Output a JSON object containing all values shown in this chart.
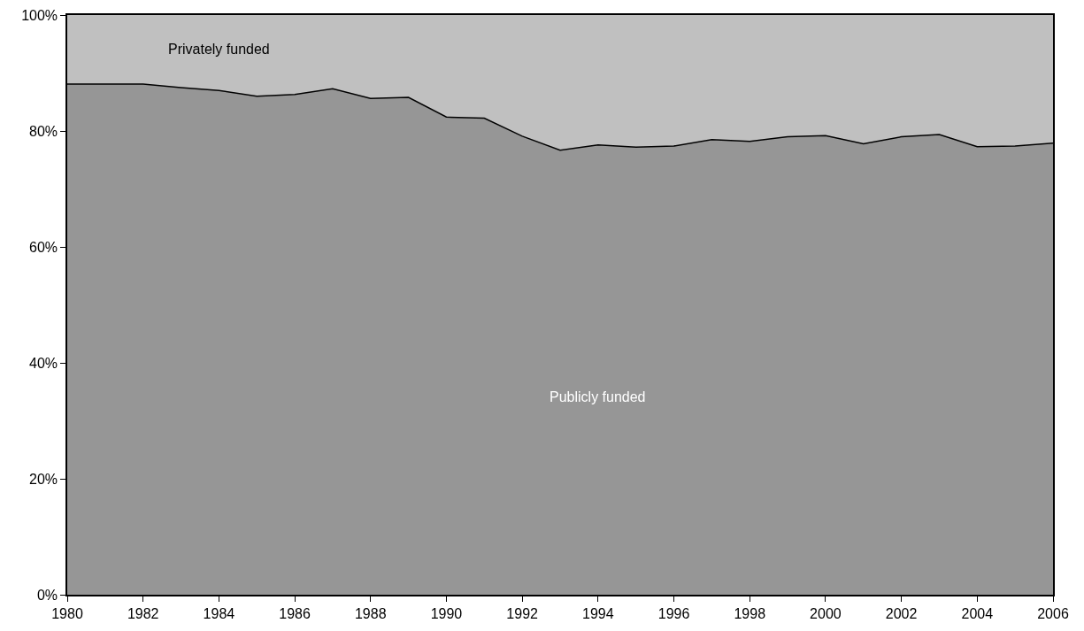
{
  "chart_data": {
    "type": "area",
    "stacked": true,
    "x": [
      1980,
      1981,
      1982,
      1983,
      1984,
      1985,
      1986,
      1987,
      1988,
      1989,
      1990,
      1991,
      1992,
      1993,
      1994,
      1995,
      1996,
      1997,
      1998,
      1999,
      2000,
      2001,
      2002,
      2003,
      2004,
      2005,
      2006
    ],
    "series": [
      {
        "name": "Publicly funded",
        "color": "#969696",
        "values": [
          88.1,
          88.1,
          88.1,
          87.5,
          87.0,
          86.0,
          86.3,
          87.3,
          85.6,
          85.8,
          82.4,
          82.2,
          79.1,
          76.7,
          77.6,
          77.2,
          77.4,
          78.5,
          78.2,
          79.0,
          79.2,
          77.8,
          79.0,
          79.4,
          77.3,
          77.4,
          77.9
        ]
      },
      {
        "name": "Privately funded",
        "color": "#c0c0c0",
        "values": [
          11.9,
          11.9,
          11.9,
          12.5,
          13.0,
          14.0,
          13.7,
          12.7,
          14.4,
          14.2,
          17.6,
          17.8,
          20.9,
          23.3,
          22.4,
          22.8,
          22.6,
          21.5,
          21.8,
          21.0,
          20.8,
          22.2,
          21.0,
          20.6,
          22.7,
          22.6,
          22.1
        ]
      }
    ],
    "xlim": [
      1980,
      2006
    ],
    "xticks": [
      1980,
      1982,
      1984,
      1986,
      1988,
      1990,
      1992,
      1994,
      1996,
      1998,
      2000,
      2002,
      2004,
      2006
    ],
    "ylim": [
      0,
      100
    ],
    "yticks": [
      {
        "value": 0,
        "label": "0%"
      },
      {
        "value": 20,
        "label": "20%"
      },
      {
        "value": 40,
        "label": "40%"
      },
      {
        "value": 60,
        "label": "60%"
      },
      {
        "value": 80,
        "label": "80%"
      },
      {
        "value": 100,
        "label": "100%"
      }
    ],
    "legend": false
  }
}
